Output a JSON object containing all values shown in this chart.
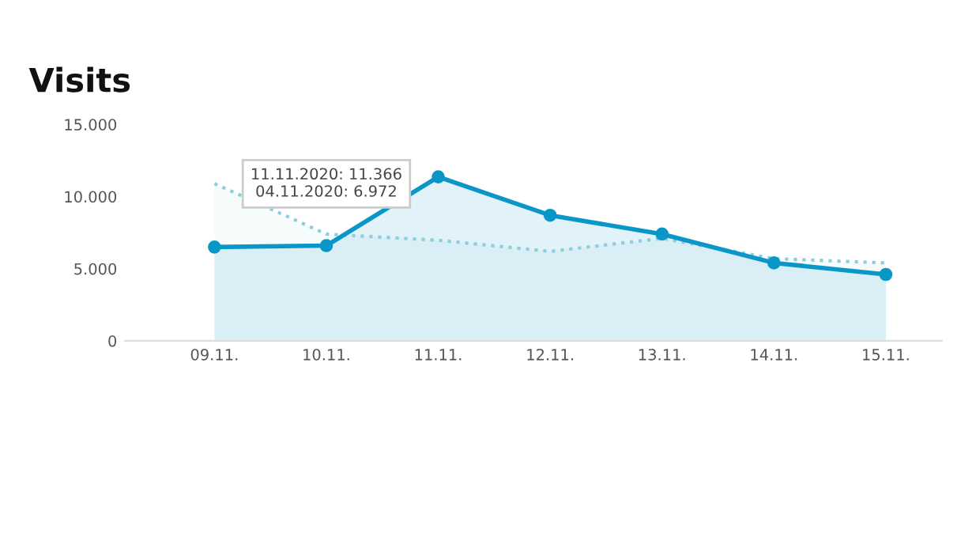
{
  "chart_data": {
    "type": "area",
    "title": "Visits",
    "categories": [
      "09.11.",
      "10.11.",
      "11.11.",
      "12.11.",
      "13.11.",
      "14.11.",
      "15.11."
    ],
    "series": [
      {
        "color": "#0b96c8",
        "marker": "circle",
        "line_style": "solid",
        "values": [
          6500,
          6600,
          11366,
          8700,
          7400,
          5400,
          4600
        ]
      },
      {
        "color": "#8ccfdc",
        "marker": "none",
        "line_style": "dotted",
        "values": [
          10900,
          7400,
          6972,
          6200,
          7100,
          5700,
          5400
        ]
      }
    ],
    "ylim": [
      0,
      15000
    ],
    "yticks": [
      {
        "value": 0,
        "label": "0"
      },
      {
        "value": 5000,
        "label": "5.000"
      },
      {
        "value": 10000,
        "label": "10.000"
      },
      {
        "value": 15000,
        "label": "15.000"
      }
    ],
    "grid": false,
    "legend": false,
    "annotations": [
      "11.11.2020: 11.366",
      "04.11.2020: 6.972"
    ]
  }
}
